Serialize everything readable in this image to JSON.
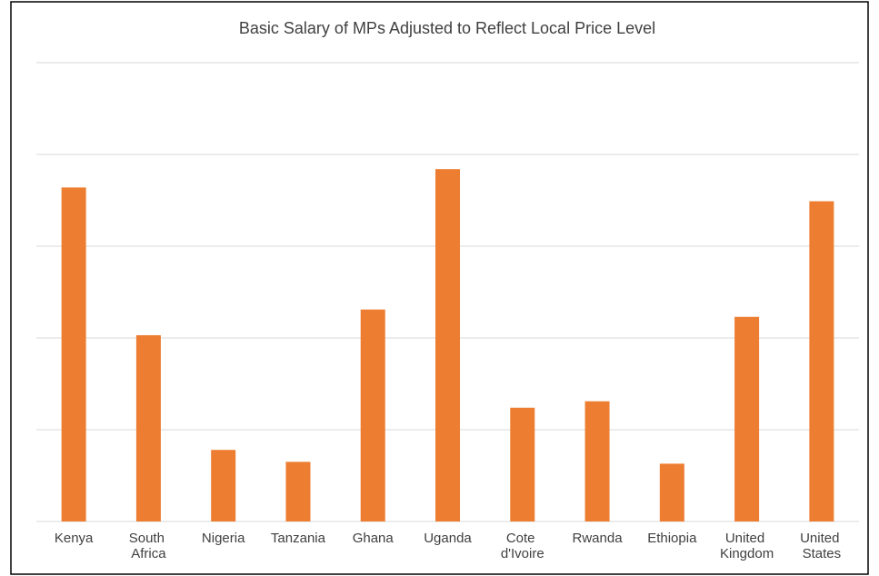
{
  "chart_data": {
    "type": "bar",
    "title": "Basic Salary of MPs Adjusted to Reflect Local Price Level",
    "categories": [
      "Kenya",
      "South Africa",
      "Nigeria",
      "Tanzania",
      "Ghana",
      "Uganda",
      "Cote d'Ivoire",
      "Rwanda",
      "Ethiopia",
      "United Kingdom",
      "United States"
    ],
    "values": [
      3.64,
      2.03,
      0.78,
      0.65,
      2.31,
      3.84,
      1.24,
      1.31,
      0.63,
      2.23,
      3.49
    ],
    "color": "#ed7d31",
    "ylim": [
      0,
      5
    ],
    "yticks": [
      0,
      1,
      2,
      3,
      4,
      5
    ],
    "grid": true
  }
}
